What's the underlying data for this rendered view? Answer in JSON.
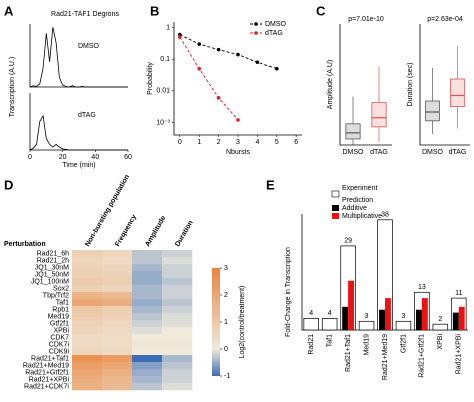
{
  "chart_data": [
    {
      "type": "traces",
      "panel": "A",
      "title": "Rad21-TAF1 Degrons",
      "ylabel": "Transcription (A.U.)",
      "xlabel": "Time (min)",
      "x": [
        0,
        2,
        4,
        6,
        8,
        10,
        12,
        14,
        16,
        18,
        20,
        22,
        24,
        26,
        28,
        30,
        32,
        34,
        36,
        38,
        40,
        42,
        44,
        46,
        48,
        50,
        52,
        54,
        56,
        58,
        60
      ],
      "xlim": [
        0,
        60
      ],
      "xticks": [
        0,
        20,
        40,
        60
      ],
      "ylim": [
        0,
        10
      ],
      "series": [
        {
          "name": "DMSO",
          "color": "#000000",
          "values": [
            0,
            0.2,
            0.1,
            0.5,
            3,
            8.5,
            4,
            9.5,
            7,
            1.5,
            0.3,
            0.1,
            0,
            0.2,
            0,
            0,
            0.1,
            0,
            0,
            0,
            0,
            0,
            0,
            0,
            0,
            0,
            0,
            0,
            0,
            0,
            0
          ]
        },
        {
          "name": "dTAG",
          "color": "#000000",
          "values": [
            0,
            0.3,
            1,
            5,
            6,
            2,
            1,
            0.5,
            1,
            0.5,
            0.2,
            0.1,
            0,
            0,
            0,
            0,
            0,
            0,
            0,
            0,
            0,
            0,
            0,
            0,
            0,
            0,
            0,
            0,
            0,
            0,
            0
          ]
        }
      ]
    },
    {
      "type": "line",
      "panel": "B",
      "xlabel": "Nbursts",
      "ylabel": "Probability",
      "log_y": true,
      "legend": "upper right",
      "x": [
        0,
        1,
        2,
        3,
        4,
        5,
        6
      ],
      "xlim": [
        -0.3,
        6.3
      ],
      "xticks": [
        0,
        1,
        2,
        3,
        4,
        5,
        6
      ],
      "ylim": [
        0.0004,
        1.5
      ],
      "yticks": [
        1,
        0.1,
        0.01,
        {
          "value": 0.001,
          "label": "10⁻³"
        }
      ],
      "series": [
        {
          "name": "DMSO",
          "color": "#000000",
          "values": [
            0.6,
            0.3,
            0.2,
            0.14,
            0.08,
            0.05,
            null
          ]
        },
        {
          "name": "dTAG",
          "color": "#e02020",
          "values": [
            0.5,
            0.05,
            0.006,
            0.0012,
            null,
            null,
            null
          ]
        }
      ]
    },
    {
      "type": "box",
      "panel": "C",
      "ylabel": "Amplitude (A.U)",
      "annotation": "p=7.01e-10",
      "categories": [
        "DMSO",
        "dTAG"
      ],
      "colors": [
        "#555555",
        "#e05050"
      ],
      "ylim": [
        0,
        200
      ],
      "boxes": [
        {
          "min": 0,
          "q1": 10,
          "median": 20,
          "q3": 35,
          "max": 80
        },
        {
          "min": 5,
          "q1": 30,
          "median": 45,
          "q3": 70,
          "max": 130
        }
      ]
    },
    {
      "type": "box",
      "ylabel": "Duration (sec)",
      "annotation": "p=2.63e-04",
      "categories": [
        "DMSO",
        "dTAG"
      ],
      "colors": [
        "#555555",
        "#e05050"
      ],
      "ylim": [
        0,
        1100
      ],
      "boxes": [
        {
          "min": 100,
          "q1": 220,
          "median": 300,
          "q3": 400,
          "max": 700
        },
        {
          "min": 150,
          "q1": 350,
          "median": 450,
          "q3": 600,
          "max": 900
        }
      ]
    },
    {
      "type": "heatmap",
      "panel": "D",
      "row_header": "Perturbation",
      "columns": [
        "Non-bursting population",
        "Frequency",
        "Amplitude",
        "Duration"
      ],
      "rows": [
        "Rad21_6h",
        "Rad21_2h",
        "JQ1_30nM",
        "JQ1_50nM",
        "JQ1_100nM",
        "Sox2",
        "Tbp/Trf2",
        "Taf1",
        "Rpb1",
        "Med19",
        "Gtf2f1",
        "XPBi",
        "CDK7",
        "CDK7i",
        "CDK9i",
        "Rad21+Taf1",
        "Rad21+Med19",
        "Rad21+Gtf2f1",
        "Rad21+XPBi",
        "Rad21+CDK7i"
      ],
      "row_colors": [
        "#000000",
        "#000000",
        "#000000",
        "#000000",
        "#000000",
        "#000000",
        "#8a3aa8",
        "#8a3aa8",
        "#8a3aa8",
        "#8a3aa8",
        "#8a3aa8",
        "#8a3aa8",
        "#8a3aa8",
        "#000000",
        "#000000",
        "#c0209a",
        "#c0209a",
        "#c0209a",
        "#c0209a",
        "#c0209a"
      ],
      "values": [
        [
          0.8,
          0.6,
          -0.3,
          -0.2
        ],
        [
          0.6,
          0.5,
          -0.3,
          -0.1
        ],
        [
          0.7,
          0.6,
          -0.4,
          -0.2
        ],
        [
          0.8,
          0.7,
          -0.5,
          -0.2
        ],
        [
          0.9,
          0.8,
          -0.5,
          -0.3
        ],
        [
          0.8,
          0.6,
          -0.4,
          -0.2
        ],
        [
          1.6,
          1.4,
          -0.4,
          -0.2
        ],
        [
          2.0,
          1.8,
          -0.5,
          -0.3
        ],
        [
          1.0,
          0.8,
          -0.4,
          -0.2
        ],
        [
          0.9,
          0.7,
          -0.3,
          -0.1
        ],
        [
          0.7,
          0.6,
          -0.2,
          -0.1
        ],
        [
          0.6,
          0.5,
          -0.1,
          0.0
        ],
        [
          0.5,
          0.4,
          0.0,
          0.0
        ],
        [
          0.5,
          0.4,
          0.1,
          0.1
        ],
        [
          0.6,
          0.5,
          0.0,
          0.0
        ],
        [
          2.6,
          2.3,
          -1.0,
          -0.4
        ],
        [
          2.2,
          2.0,
          -0.6,
          -0.3
        ],
        [
          2.0,
          1.7,
          -0.5,
          -0.2
        ],
        [
          1.8,
          1.5,
          -0.4,
          -0.2
        ],
        [
          1.7,
          1.4,
          -0.3,
          -0.1
        ]
      ],
      "colormap": [
        "#3d6db5",
        "#efeadc",
        "#e9843d"
      ],
      "clim": [
        -1,
        3
      ],
      "cticks": [
        3,
        2,
        1,
        0,
        -1
      ],
      "clabel": "Log2(control/treatment)"
    },
    {
      "type": "bar",
      "panel": "E",
      "ylabel": "Fold-Change in Transcription",
      "legend_heading": "Prediction",
      "categories": [
        "Rad21",
        "Taf1",
        "Rad21+Taf1",
        "Med19",
        "Rad21+Med19",
        "Gtf2f1",
        "Rad21+Gtf2f1",
        "XPBi",
        "Rad21+XPBi"
      ],
      "ylim": [
        0,
        40
      ],
      "series": [
        {
          "name": "Experiment",
          "color": "#ffffff",
          "values": [
            4,
            4,
            29,
            3,
            38,
            3,
            13,
            2,
            11
          ]
        },
        {
          "name": "Additive",
          "color": "#000000",
          "values": [
            null,
            null,
            8,
            null,
            7,
            null,
            7,
            null,
            6
          ]
        },
        {
          "name": "Multiplicative",
          "color": "#ee1111",
          "values": [
            null,
            null,
            17,
            null,
            11,
            null,
            11,
            null,
            8
          ]
        }
      ]
    }
  ]
}
